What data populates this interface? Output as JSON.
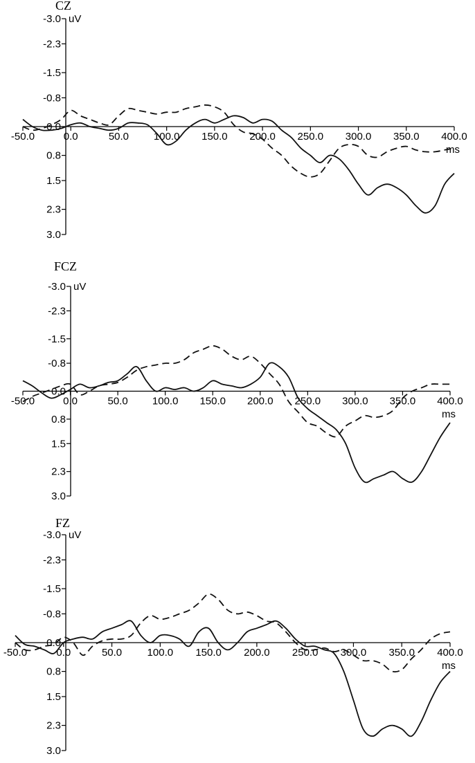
{
  "chart_data": [
    {
      "type": "line",
      "title": "CZ",
      "xlabel": "ms",
      "ylabel": "uV",
      "x_ticks": [
        "-50.0",
        "0.0",
        "50.0",
        "100.0",
        "150.0",
        "200.0",
        "250.0",
        "300.0",
        "350.0",
        "400.0"
      ],
      "y_ticks": [
        "-3.0",
        "-2.3",
        "-1.5",
        "-0.8",
        "0.0",
        "0.8",
        "1.5",
        "2.3",
        "3.0"
      ],
      "xlim": [
        -50,
        400
      ],
      "ylim": [
        -3.0,
        3.0
      ],
      "y_inverted": true,
      "series": [
        {
          "style": "solid",
          "x": [
            -50,
            -40,
            -30,
            -20,
            -10,
            0,
            10,
            20,
            30,
            40,
            50,
            60,
            70,
            80,
            90,
            100,
            110,
            120,
            130,
            140,
            150,
            160,
            170,
            180,
            190,
            200,
            210,
            220,
            230,
            240,
            250,
            260,
            270,
            280,
            290,
            300,
            310,
            320,
            330,
            340,
            350,
            360,
            370,
            380,
            390,
            400
          ],
          "y": [
            -0.2,
            0.0,
            0.1,
            0.1,
            0.05,
            -0.05,
            -0.1,
            0.0,
            0.05,
            0.1,
            0.05,
            -0.1,
            -0.1,
            -0.05,
            0.2,
            0.5,
            0.4,
            0.1,
            -0.1,
            -0.2,
            -0.1,
            -0.2,
            -0.3,
            -0.25,
            -0.1,
            -0.2,
            -0.15,
            0.1,
            0.3,
            0.6,
            0.8,
            1.0,
            0.8,
            0.9,
            1.2,
            1.6,
            1.9,
            1.7,
            1.6,
            1.7,
            1.9,
            2.2,
            2.4,
            2.2,
            1.6,
            1.3
          ]
        },
        {
          "style": "dashed",
          "x": [
            -50,
            -40,
            -30,
            -20,
            -10,
            0,
            10,
            20,
            30,
            40,
            50,
            60,
            70,
            80,
            90,
            100,
            110,
            120,
            130,
            140,
            150,
            160,
            170,
            180,
            190,
            200,
            210,
            220,
            230,
            240,
            250,
            260,
            270,
            280,
            290,
            300,
            310,
            320,
            330,
            340,
            350,
            360,
            370,
            380,
            390,
            400
          ],
          "y": [
            0.0,
            0.1,
            0.05,
            -0.05,
            -0.2,
            -0.45,
            -0.3,
            -0.2,
            -0.1,
            -0.05,
            -0.3,
            -0.5,
            -0.45,
            -0.4,
            -0.35,
            -0.4,
            -0.4,
            -0.5,
            -0.55,
            -0.6,
            -0.55,
            -0.4,
            -0.05,
            0.15,
            0.2,
            0.35,
            0.6,
            0.8,
            1.1,
            1.3,
            1.4,
            1.3,
            0.95,
            0.6,
            0.5,
            0.55,
            0.8,
            0.85,
            0.7,
            0.6,
            0.55,
            0.65,
            0.7,
            0.7,
            0.65,
            0.6
          ]
        }
      ]
    },
    {
      "type": "line",
      "title": "FCZ",
      "xlabel": "ms",
      "ylabel": "uV",
      "x_ticks": [
        "-50.0",
        "0.0",
        "50.0",
        "100.0",
        "150.0",
        "200.0",
        "250.0",
        "300.0",
        "350.0",
        "400.0"
      ],
      "y_ticks": [
        "-3.0",
        "-2.3",
        "-1.5",
        "-0.8",
        "0.0",
        "0.8",
        "1.5",
        "2.3",
        "3.0"
      ],
      "xlim": [
        -50,
        400
      ],
      "ylim": [
        -3.0,
        3.0
      ],
      "y_inverted": true,
      "series": [
        {
          "style": "solid",
          "x": [
            -50,
            -40,
            -30,
            -20,
            -10,
            0,
            10,
            20,
            30,
            40,
            50,
            60,
            70,
            80,
            90,
            100,
            110,
            120,
            130,
            140,
            150,
            160,
            170,
            180,
            190,
            200,
            210,
            220,
            230,
            240,
            250,
            260,
            270,
            280,
            290,
            300,
            310,
            320,
            330,
            340,
            350,
            360,
            370,
            380,
            390,
            400
          ],
          "y": [
            -0.3,
            -0.15,
            0.05,
            0.2,
            0.1,
            -0.05,
            -0.2,
            -0.1,
            -0.15,
            -0.25,
            -0.3,
            -0.5,
            -0.7,
            -0.3,
            0.0,
            -0.1,
            -0.05,
            -0.1,
            0.0,
            -0.1,
            -0.3,
            -0.2,
            -0.15,
            -0.1,
            -0.2,
            -0.4,
            -0.8,
            -0.7,
            -0.4,
            0.2,
            0.5,
            0.7,
            0.9,
            1.1,
            1.5,
            2.2,
            2.6,
            2.5,
            2.4,
            2.3,
            2.5,
            2.6,
            2.3,
            1.8,
            1.3,
            0.9
          ]
        },
        {
          "style": "dashed",
          "x": [
            -50,
            -40,
            -30,
            -20,
            -10,
            0,
            10,
            20,
            30,
            40,
            50,
            60,
            70,
            80,
            90,
            100,
            110,
            120,
            130,
            140,
            150,
            160,
            170,
            180,
            190,
            200,
            210,
            220,
            230,
            240,
            250,
            260,
            270,
            280,
            290,
            300,
            310,
            320,
            330,
            340,
            350,
            360,
            370,
            380,
            390,
            400
          ],
          "y": [
            0.3,
            0.15,
            0.05,
            -0.05,
            -0.15,
            -0.2,
            0.1,
            0.0,
            -0.15,
            -0.2,
            -0.25,
            -0.4,
            -0.6,
            -0.7,
            -0.75,
            -0.8,
            -0.8,
            -0.9,
            -1.1,
            -1.2,
            -1.3,
            -1.2,
            -1.0,
            -0.9,
            -1.0,
            -0.8,
            -0.5,
            -0.2,
            0.3,
            0.6,
            0.9,
            1.0,
            1.2,
            1.3,
            1.0,
            0.85,
            0.7,
            0.75,
            0.7,
            0.55,
            0.2,
            0.0,
            -0.1,
            -0.2,
            -0.2,
            -0.2
          ]
        }
      ]
    },
    {
      "type": "line",
      "title": "FZ",
      "xlabel": "ms",
      "ylabel": "uV",
      "x_ticks": [
        "-50.0",
        "0.0",
        "50.0",
        "100.0",
        "150.0",
        "200.0",
        "250.0",
        "300.0",
        "350.0",
        "400.0"
      ],
      "y_ticks": [
        "-3.0",
        "-2.3",
        "-1.5",
        "-0.8",
        "0.0",
        "0.8",
        "1.5",
        "2.3",
        "3.0"
      ],
      "xlim": [
        -50,
        400
      ],
      "ylim": [
        -3.0,
        3.0
      ],
      "y_inverted": true,
      "series": [
        {
          "style": "solid",
          "x": [
            -50,
            -40,
            -30,
            -20,
            -10,
            0,
            10,
            20,
            30,
            40,
            50,
            60,
            70,
            80,
            90,
            100,
            110,
            120,
            130,
            140,
            150,
            160,
            170,
            180,
            190,
            200,
            210,
            220,
            230,
            240,
            250,
            260,
            270,
            280,
            290,
            300,
            310,
            320,
            330,
            340,
            350,
            360,
            370,
            380,
            390,
            400
          ],
          "y": [
            -0.2,
            0.05,
            0.1,
            0.2,
            0.3,
            0.0,
            -0.1,
            -0.15,
            -0.1,
            -0.3,
            -0.4,
            -0.5,
            -0.6,
            -0.2,
            0.0,
            -0.2,
            -0.2,
            -0.1,
            0.1,
            -0.3,
            -0.4,
            0.0,
            0.2,
            0.0,
            -0.3,
            -0.4,
            -0.5,
            -0.6,
            -0.4,
            -0.1,
            0.1,
            0.1,
            0.2,
            0.3,
            0.8,
            1.6,
            2.4,
            2.6,
            2.4,
            2.3,
            2.4,
            2.6,
            2.2,
            1.6,
            1.1,
            0.8
          ]
        },
        {
          "style": "dashed",
          "x": [
            -50,
            -40,
            -30,
            -20,
            -10,
            0,
            10,
            20,
            30,
            40,
            50,
            60,
            70,
            80,
            90,
            100,
            110,
            120,
            130,
            140,
            150,
            160,
            170,
            180,
            190,
            200,
            210,
            220,
            230,
            240,
            250,
            260,
            270,
            280,
            290,
            300,
            310,
            320,
            330,
            340,
            350,
            360,
            370,
            380,
            390,
            400
          ],
          "y": [
            0.0,
            0.2,
            0.2,
            0.1,
            0.05,
            -0.15,
            0.0,
            0.35,
            0.1,
            -0.05,
            -0.1,
            -0.1,
            -0.2,
            -0.55,
            -0.75,
            -0.65,
            -0.7,
            -0.8,
            -0.9,
            -1.1,
            -1.35,
            -1.2,
            -0.9,
            -0.8,
            -0.85,
            -0.75,
            -0.6,
            -0.55,
            -0.3,
            0.0,
            0.2,
            0.2,
            0.15,
            0.25,
            0.2,
            0.35,
            0.5,
            0.5,
            0.6,
            0.8,
            0.75,
            0.45,
            0.2,
            -0.1,
            -0.25,
            -0.3
          ]
        }
      ]
    }
  ]
}
